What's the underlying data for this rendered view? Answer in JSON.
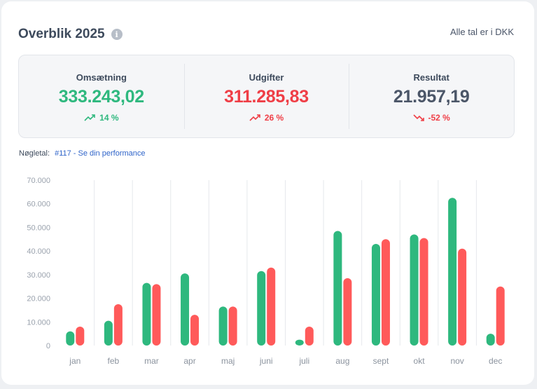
{
  "header": {
    "title": "Overblik 2025",
    "info_icon": "info-icon",
    "currency_note": "Alle tal er i DKK"
  },
  "kpis": [
    {
      "label": "Omsætning",
      "value": "333.243,02",
      "change": "14 %",
      "trend": "up",
      "color": "#2eb87e"
    },
    {
      "label": "Udgifter",
      "value": "311.285,83",
      "change": "26 %",
      "trend": "up",
      "color": "#ef3e46"
    },
    {
      "label": "Resultat",
      "value": "21.957,19",
      "change": "-52 %",
      "trend": "down",
      "color": "#4b5668"
    }
  ],
  "kpi_link": {
    "label": "Nøgletal:",
    "link_text": "#117 - Se din performance"
  },
  "colors": {
    "income": "#2eb87e",
    "expense": "#ff5a5a"
  },
  "chart_data": {
    "type": "bar",
    "categories": [
      "jan",
      "feb",
      "mar",
      "apr",
      "maj",
      "juni",
      "juli",
      "aug",
      "sept",
      "okt",
      "nov",
      "dec"
    ],
    "series": [
      {
        "values": [
          6000,
          10500,
          26500,
          30500,
          16500,
          31500,
          2500,
          48500,
          43000,
          47000,
          62500,
          5000
        ]
      },
      {
        "values": [
          8000,
          17500,
          26000,
          13000,
          16500,
          33000,
          8000,
          28500,
          45000,
          45500,
          41000,
          25000
        ]
      }
    ],
    "yticks": [
      "70.000",
      "60.000",
      "50.000",
      "40.000",
      "30.000",
      "20.000",
      "10.000",
      "0"
    ],
    "ylim": [
      0,
      70000
    ],
    "grid": true,
    "xlabel": "",
    "ylabel": ""
  }
}
